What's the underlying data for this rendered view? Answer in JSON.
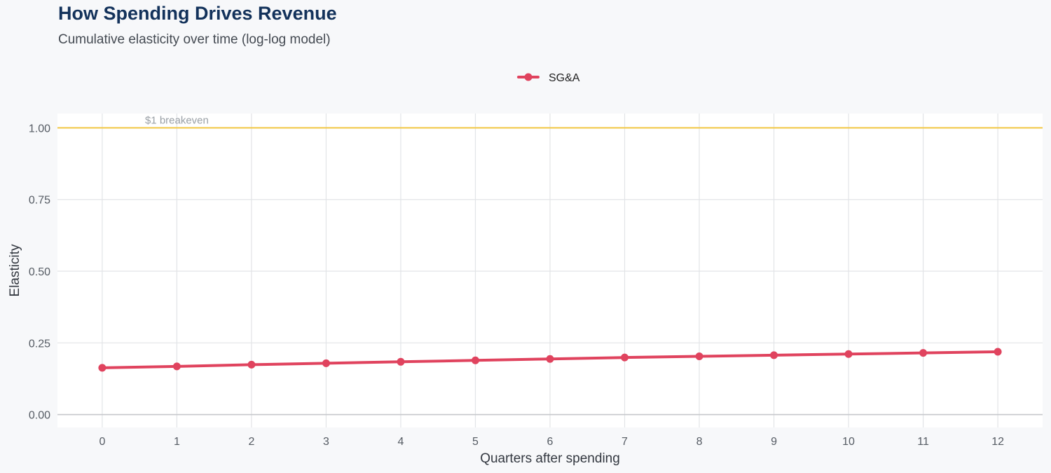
{
  "header": {
    "title": "How Spending Drives Revenue",
    "subtitle": "Cumulative elasticity over time (log-log model)"
  },
  "chart_data": {
    "type": "line",
    "title": "How Spending Drives Revenue",
    "subtitle": "Cumulative elasticity over time (log-log model)",
    "xlabel": "Quarters after spending",
    "ylabel": "Elasticity",
    "x": [
      0,
      1,
      2,
      3,
      4,
      5,
      6,
      7,
      8,
      9,
      10,
      11,
      12
    ],
    "xlim": [
      -0.6,
      12.6
    ],
    "ylim": [
      -0.045,
      1.05
    ],
    "yticks": [
      0.0,
      0.25,
      0.5,
      0.75,
      1.0
    ],
    "ytick_labels": [
      "0.00",
      "0.25",
      "0.50",
      "0.75",
      "1.00"
    ],
    "xtick_labels": [
      "0",
      "1",
      "2",
      "3",
      "4",
      "5",
      "6",
      "7",
      "8",
      "9",
      "10",
      "11",
      "12"
    ],
    "grid": true,
    "legend_position": "top-center",
    "series": [
      {
        "name": "SG&A",
        "color": "#e0435e",
        "values": [
          0.163,
          0.168,
          0.174,
          0.179,
          0.184,
          0.189,
          0.194,
          0.199,
          0.203,
          0.207,
          0.211,
          0.215,
          0.219
        ]
      }
    ],
    "reference_line": {
      "y": 1.0,
      "label": "$1 breakeven",
      "label_x": 1,
      "color": "#f2c94c"
    },
    "colors": {
      "panel": "#ffffff",
      "grid": "#e2e4e7",
      "zero_line": "#c8cacd"
    }
  }
}
